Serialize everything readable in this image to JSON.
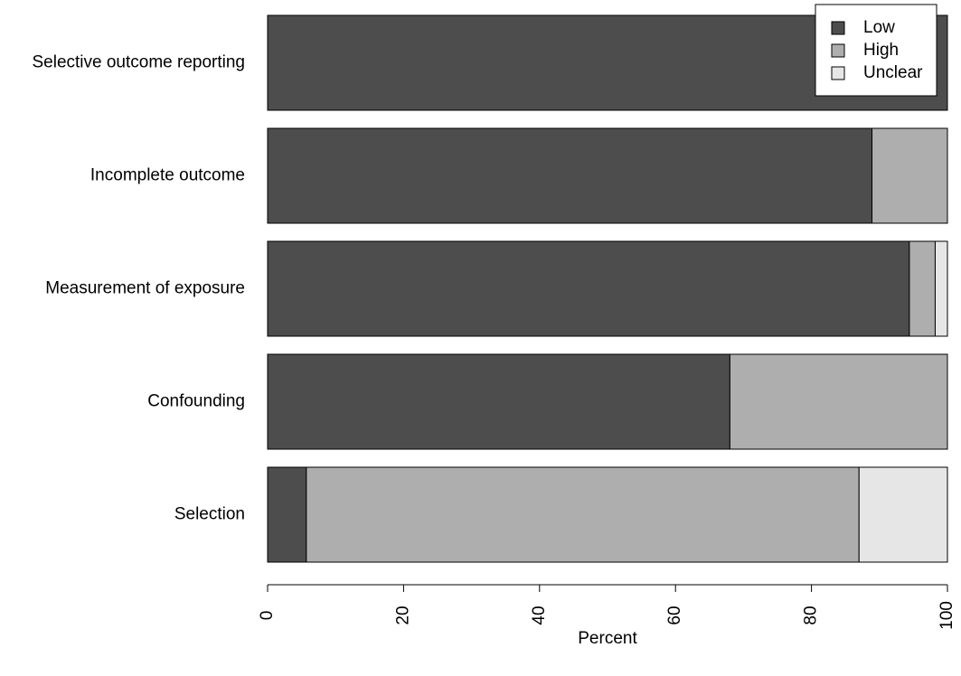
{
  "chart_data": {
    "type": "stacked-bar-horizontal",
    "x_label": "Percent",
    "categories": [
      "Selective outcome reporting",
      "Incomplete outcome",
      "Measurement of exposure",
      "Confounding",
      "Selection"
    ],
    "series": [
      {
        "name": "Low",
        "color": "#4d4d4d",
        "values": [
          100,
          88.9,
          94.4,
          68,
          5.7
        ]
      },
      {
        "name": "High",
        "color": "#aeaeae",
        "values": [
          0,
          11.1,
          3.8,
          32,
          81.3
        ]
      },
      {
        "name": "Unclear",
        "color": "#e6e6e6",
        "values": [
          0,
          0,
          1.8,
          0,
          13
        ]
      }
    ],
    "xlim": [
      0,
      100
    ],
    "xticks": [
      0,
      20,
      40,
      60,
      80,
      100
    ],
    "legend": "topright"
  }
}
